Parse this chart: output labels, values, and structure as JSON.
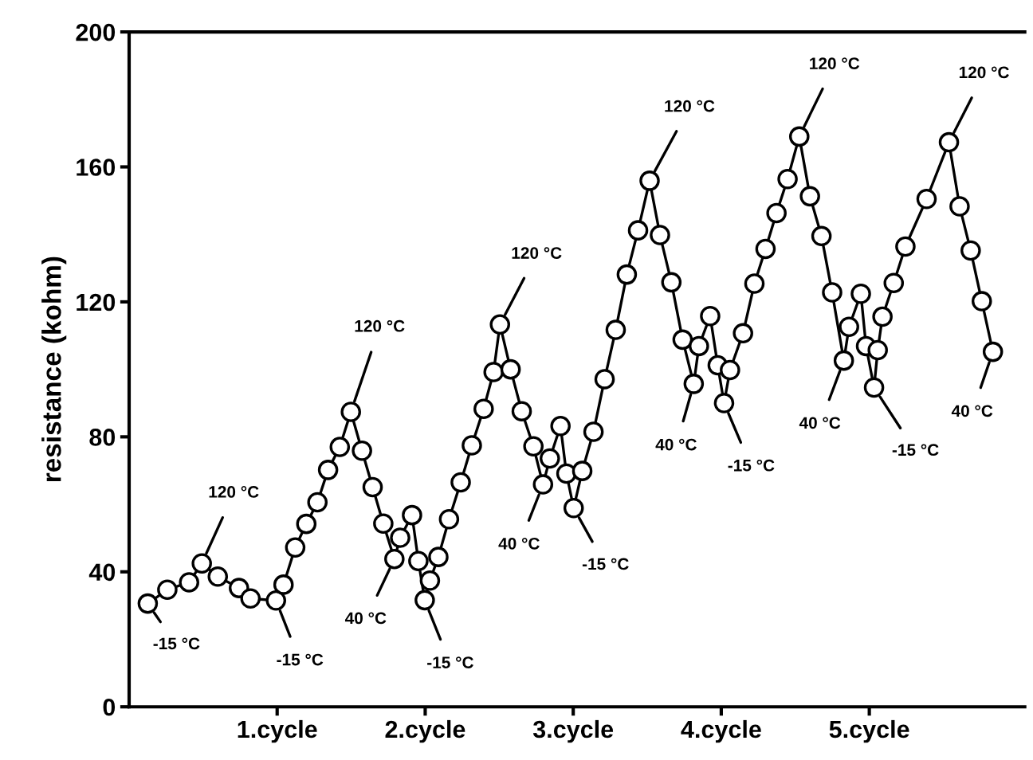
{
  "chart_data": {
    "type": "line",
    "ylabel": "resistance (kohm)",
    "marker": "circle",
    "line_style": "solid",
    "grid": false,
    "legend": false,
    "xlim": [
      0,
      6.05
    ],
    "xticks": [
      {
        "value": 1,
        "label": "1.cycle"
      },
      {
        "value": 2,
        "label": "2.cycle"
      },
      {
        "value": 3,
        "label": "3.cycle"
      },
      {
        "value": 4,
        "label": "4.cycle"
      },
      {
        "value": 5,
        "label": "5.cycle"
      }
    ],
    "ylim": [
      0,
      200
    ],
    "yticks": [
      0,
      40,
      80,
      120,
      160,
      200
    ],
    "series": [
      {
        "color": "#000000",
        "x": [
          0.126,
          0.258,
          0.405,
          0.491,
          0.599,
          0.742,
          0.82,
          0.992,
          1.043,
          1.122,
          1.197,
          1.272,
          1.344,
          1.423,
          1.498,
          1.573,
          1.645,
          1.717,
          1.792,
          1.831,
          1.911,
          1.954,
          1.997,
          2.032,
          2.089,
          2.161,
          2.24,
          2.315,
          2.395,
          2.462,
          2.505,
          2.577,
          2.652,
          2.731,
          2.796,
          2.842,
          2.914,
          2.954,
          3.003,
          3.061,
          3.137,
          3.212,
          3.287,
          3.362,
          3.438,
          3.516,
          3.586,
          3.663,
          3.739,
          3.814,
          3.849,
          3.925,
          3.976,
          4.019,
          4.059,
          4.147,
          4.224,
          4.299,
          4.373,
          4.448,
          4.527,
          4.599,
          4.677,
          4.749,
          4.828,
          4.863,
          4.943,
          4.978,
          5.032,
          5.057,
          5.089,
          5.165,
          5.244,
          5.387,
          5.538,
          5.61,
          5.685,
          5.76,
          5.835
        ],
        "values": [
          30.6,
          34.7,
          36.9,
          42.5,
          38.6,
          35.2,
          32.1,
          31.5,
          36.2,
          47.2,
          54.2,
          60.6,
          70.2,
          77.0,
          87.4,
          75.9,
          65.1,
          54.3,
          43.8,
          50.1,
          56.8,
          43.2,
          31.6,
          37.4,
          44.4,
          55.6,
          66.5,
          77.5,
          88.3,
          99.2,
          113.3,
          100.0,
          87.6,
          77.2,
          65.9,
          73.6,
          83.2,
          69.1,
          58.9,
          69.9,
          81.5,
          97.1,
          111.7,
          128.1,
          141.2,
          155.9,
          139.8,
          125.8,
          108.8,
          95.7,
          106.9,
          115.8,
          101.2,
          90.0,
          99.8,
          110.7,
          125.4,
          135.7,
          146.3,
          156.4,
          169.0,
          151.3,
          139.5,
          122.8,
          102.6,
          112.6,
          122.4,
          106.9,
          94.6,
          105.7,
          115.6,
          125.6,
          136.4,
          150.5,
          167.3,
          148.3,
          135.2,
          120.2,
          105.2
        ]
      }
    ],
    "annotations": [
      {
        "text": "-15 °C",
        "x": 0.126,
        "y": 30.6
      },
      {
        "text": "120 °C",
        "x": 0.491,
        "y": 42.5
      },
      {
        "text": "-15 °C",
        "x": 0.992,
        "y": 31.5
      },
      {
        "text": "120 °C",
        "x": 1.498,
        "y": 87.4
      },
      {
        "text": "40 °C",
        "x": 1.792,
        "y": 43.8
      },
      {
        "text": "-15 °C",
        "x": 1.997,
        "y": 31.6
      },
      {
        "text": "120 °C",
        "x": 2.505,
        "y": 113.3
      },
      {
        "text": "40 °C",
        "x": 2.796,
        "y": 65.9
      },
      {
        "text": "-15 °C",
        "x": 3.003,
        "y": 58.9
      },
      {
        "text": "120 °C",
        "x": 3.516,
        "y": 155.9
      },
      {
        "text": "40 °C",
        "x": 3.814,
        "y": 95.7
      },
      {
        "text": "-15 °C",
        "x": 4.019,
        "y": 90.0
      },
      {
        "text": "120 °C",
        "x": 4.527,
        "y": 169.0
      },
      {
        "text": "40 °C",
        "x": 4.828,
        "y": 102.6
      },
      {
        "text": "-15 °C",
        "x": 5.032,
        "y": 94.6
      },
      {
        "text": "120 °C",
        "x": 5.538,
        "y": 167.3
      },
      {
        "text": "40 °C",
        "x": 5.835,
        "y": 105.2
      }
    ]
  }
}
